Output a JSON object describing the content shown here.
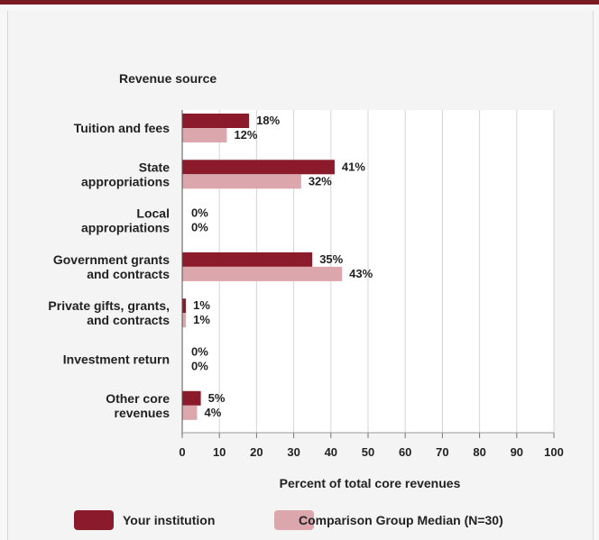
{
  "chart_data": {
    "type": "bar",
    "orientation": "horizontal",
    "title": "Revenue source",
    "xlabel": "Percent of total core revenues",
    "xlim": [
      0,
      100
    ],
    "xticks": [
      0,
      10,
      20,
      30,
      40,
      50,
      60,
      70,
      80,
      90,
      100
    ],
    "grid": "vertical",
    "legend_position": "bottom",
    "categories": [
      [
        "Tuition and fees"
      ],
      [
        "State",
        "appropriations"
      ],
      [
        "Local",
        "appropriations"
      ],
      [
        "Government grants",
        "and contracts"
      ],
      [
        "Private gifts, grants,",
        "and contracts"
      ],
      [
        "Investment return"
      ],
      [
        "Other core",
        "revenues"
      ]
    ],
    "series": [
      {
        "name": "Your institution",
        "color": "#8b1a2b",
        "values": [
          18,
          41,
          0,
          35,
          1,
          0,
          5
        ],
        "labels": [
          "18%",
          "41%",
          "0%",
          "35%",
          "1%",
          "0%",
          "5%"
        ]
      },
      {
        "name": "Comparison Group Median (N=30)",
        "color": "#dba7ad",
        "values": [
          12,
          32,
          0,
          43,
          1,
          0,
          4
        ],
        "labels": [
          "12%",
          "32%",
          "0%",
          "43%",
          "1%",
          "0%",
          "4%"
        ]
      }
    ]
  }
}
